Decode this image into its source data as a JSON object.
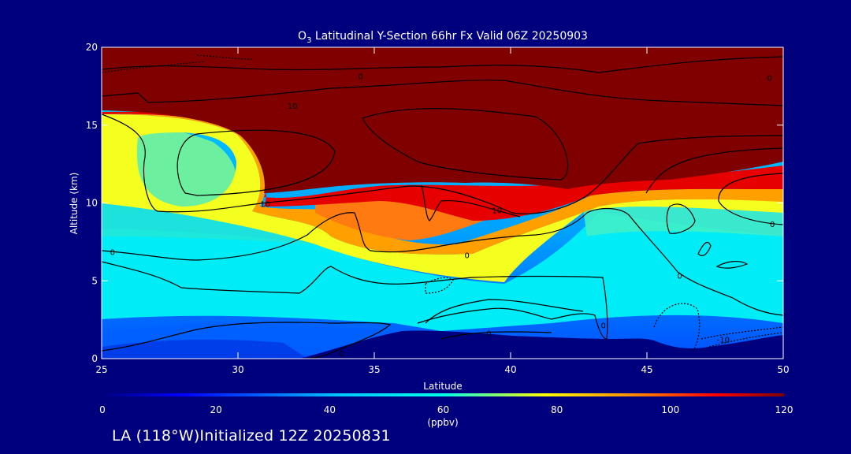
{
  "chart_data": {
    "type": "heatmap",
    "title_prefix": "O",
    "title_subscript": "3",
    "title_rest": " Latitudinal Y-Section 66hr  Fx Valid 06Z 20250903",
    "xlabel": "Latitude",
    "ylabel": "Altitude (km)",
    "xlim": [
      25,
      50
    ],
    "ylim": [
      0,
      20
    ],
    "x_ticks": [
      25,
      30,
      35,
      40,
      45,
      50
    ],
    "y_ticks": [
      0,
      5,
      10,
      15,
      20
    ],
    "colorbar": {
      "label": "(ppbv)",
      "range": [
        0,
        120
      ],
      "ticks": [
        0,
        20,
        40,
        60,
        80,
        100,
        120
      ]
    },
    "contour_labels": [
      {
        "text": "0",
        "lat": 34.5,
        "alt": 18.1
      },
      {
        "text": "10",
        "lat": 32.0,
        "alt": 16.2
      },
      {
        "text": "10",
        "lat": 31.0,
        "alt": 9.9
      },
      {
        "text": "10",
        "lat": 39.5,
        "alt": 9.5
      },
      {
        "text": "0",
        "lat": 49.5,
        "alt": 18.0
      },
      {
        "text": "0",
        "lat": 49.6,
        "alt": 8.6
      },
      {
        "text": "0",
        "lat": 25.4,
        "alt": 6.8
      },
      {
        "text": "0",
        "lat": 38.4,
        "alt": 6.6
      },
      {
        "text": "0",
        "lat": 46.2,
        "alt": 5.3
      },
      {
        "text": "0",
        "lat": 43.4,
        "alt": 2.1
      },
      {
        "text": "0",
        "lat": 39.2,
        "alt": 1.6
      },
      {
        "text": "0",
        "lat": 33.8,
        "alt": 0.3
      },
      {
        "text": "-10",
        "lat": 47.8,
        "alt": 1.2
      }
    ],
    "colors": {
      "background": "#00007f",
      "text": "#ffffff",
      "contour": "#000000"
    }
  },
  "footer": {
    "text": "LA (118°W)Initialized 12Z 20250831"
  }
}
